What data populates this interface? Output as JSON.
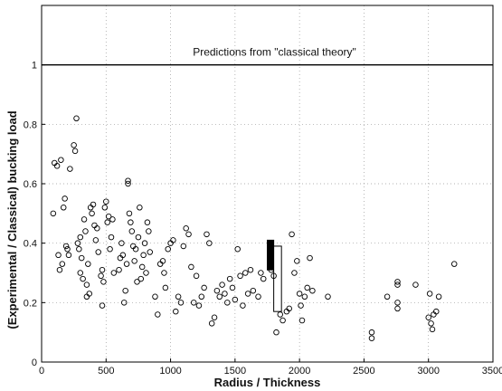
{
  "chart_data": {
    "type": "scatter",
    "title": "",
    "xlabel": "Radius / Thickness",
    "ylabel": "(Experimental / Classical)   bucking load",
    "xlim": [
      0,
      3500
    ],
    "ylim": [
      0,
      1.2
    ],
    "xticks": [
      0,
      500,
      1000,
      1500,
      2000,
      2500,
      3000,
      3500
    ],
    "yticks": [
      0,
      0.2,
      0.4,
      0.6,
      0.8,
      1
    ],
    "grid": "dotted",
    "annotation": "Predictions from \"classical theory\"",
    "reference_line_y": 1,
    "marker": "open-circle",
    "points": [
      [
        90,
        0.5
      ],
      [
        100,
        0.67
      ],
      [
        120,
        0.66
      ],
      [
        130,
        0.36
      ],
      [
        140,
        0.31
      ],
      [
        150,
        0.68
      ],
      [
        160,
        0.33
      ],
      [
        170,
        0.52
      ],
      [
        180,
        0.55
      ],
      [
        190,
        0.39
      ],
      [
        200,
        0.38
      ],
      [
        210,
        0.36
      ],
      [
        220,
        0.65
      ],
      [
        250,
        0.73
      ],
      [
        260,
        0.71
      ],
      [
        270,
        0.82
      ],
      [
        280,
        0.4
      ],
      [
        290,
        0.38
      ],
      [
        300,
        0.42
      ],
      [
        300,
        0.3
      ],
      [
        310,
        0.35
      ],
      [
        320,
        0.28
      ],
      [
        330,
        0.48
      ],
      [
        340,
        0.44
      ],
      [
        350,
        0.26
      ],
      [
        350,
        0.22
      ],
      [
        360,
        0.33
      ],
      [
        370,
        0.23
      ],
      [
        380,
        0.52
      ],
      [
        390,
        0.5
      ],
      [
        400,
        0.53
      ],
      [
        410,
        0.46
      ],
      [
        420,
        0.41
      ],
      [
        430,
        0.45
      ],
      [
        440,
        0.37
      ],
      [
        460,
        0.29
      ],
      [
        470,
        0.31
      ],
      [
        480,
        0.27
      ],
      [
        470,
        0.19
      ],
      [
        490,
        0.52
      ],
      [
        500,
        0.54
      ],
      [
        510,
        0.47
      ],
      [
        520,
        0.49
      ],
      [
        530,
        0.38
      ],
      [
        540,
        0.42
      ],
      [
        550,
        0.48
      ],
      [
        560,
        0.3
      ],
      [
        600,
        0.31
      ],
      [
        610,
        0.35
      ],
      [
        620,
        0.4
      ],
      [
        630,
        0.36
      ],
      [
        640,
        0.2
      ],
      [
        650,
        0.24
      ],
      [
        660,
        0.33
      ],
      [
        670,
        0.61
      ],
      [
        670,
        0.6
      ],
      [
        680,
        0.5
      ],
      [
        690,
        0.47
      ],
      [
        700,
        0.44
      ],
      [
        710,
        0.39
      ],
      [
        720,
        0.34
      ],
      [
        730,
        0.38
      ],
      [
        740,
        0.27
      ],
      [
        750,
        0.42
      ],
      [
        760,
        0.52
      ],
      [
        770,
        0.28
      ],
      [
        780,
        0.32
      ],
      [
        790,
        0.36
      ],
      [
        800,
        0.4
      ],
      [
        810,
        0.3
      ],
      [
        820,
        0.47
      ],
      [
        830,
        0.44
      ],
      [
        840,
        0.37
      ],
      [
        880,
        0.22
      ],
      [
        900,
        0.16
      ],
      [
        920,
        0.33
      ],
      [
        940,
        0.34
      ],
      [
        950,
        0.3
      ],
      [
        960,
        0.25
      ],
      [
        980,
        0.38
      ],
      [
        1000,
        0.4
      ],
      [
        1020,
        0.41
      ],
      [
        1040,
        0.17
      ],
      [
        1060,
        0.22
      ],
      [
        1080,
        0.2
      ],
      [
        1100,
        0.39
      ],
      [
        1120,
        0.45
      ],
      [
        1140,
        0.43
      ],
      [
        1160,
        0.32
      ],
      [
        1180,
        0.2
      ],
      [
        1200,
        0.29
      ],
      [
        1220,
        0.19
      ],
      [
        1240,
        0.22
      ],
      [
        1260,
        0.25
      ],
      [
        1280,
        0.43
      ],
      [
        1300,
        0.4
      ],
      [
        1320,
        0.13
      ],
      [
        1340,
        0.15
      ],
      [
        1360,
        0.24
      ],
      [
        1380,
        0.22
      ],
      [
        1400,
        0.26
      ],
      [
        1420,
        0.23
      ],
      [
        1440,
        0.2
      ],
      [
        1460,
        0.28
      ],
      [
        1480,
        0.25
      ],
      [
        1500,
        0.21
      ],
      [
        1520,
        0.38
      ],
      [
        1540,
        0.29
      ],
      [
        1560,
        0.19
      ],
      [
        1580,
        0.3
      ],
      [
        1600,
        0.23
      ],
      [
        1620,
        0.31
      ],
      [
        1640,
        0.24
      ],
      [
        1680,
        0.22
      ],
      [
        1700,
        0.3
      ],
      [
        1720,
        0.28
      ],
      [
        1780,
        0.31
      ],
      [
        1800,
        0.29
      ],
      [
        1820,
        0.1
      ],
      [
        1850,
        0.16
      ],
      [
        1870,
        0.14
      ],
      [
        1900,
        0.17
      ],
      [
        1920,
        0.18
      ],
      [
        1940,
        0.43
      ],
      [
        1960,
        0.3
      ],
      [
        1980,
        0.34
      ],
      [
        2000,
        0.23
      ],
      [
        2010,
        0.19
      ],
      [
        2020,
        0.14
      ],
      [
        2040,
        0.22
      ],
      [
        2060,
        0.25
      ],
      [
        2080,
        0.35
      ],
      [
        2100,
        0.24
      ],
      [
        2220,
        0.22
      ],
      [
        2560,
        0.1
      ],
      [
        2560,
        0.08
      ],
      [
        2680,
        0.22
      ],
      [
        2760,
        0.27
      ],
      [
        2760,
        0.26
      ],
      [
        2760,
        0.2
      ],
      [
        2760,
        0.18
      ],
      [
        2900,
        0.26
      ],
      [
        3000,
        0.15
      ],
      [
        3010,
        0.23
      ],
      [
        3020,
        0.13
      ],
      [
        3030,
        0.11
      ],
      [
        3040,
        0.16
      ],
      [
        3060,
        0.17
      ],
      [
        3080,
        0.22
      ],
      [
        3200,
        0.33
      ]
    ],
    "bars": [
      {
        "x_from": 1750,
        "x_to": 1800,
        "y_from": 0.31,
        "y_to": 0.41,
        "fill": "#000000"
      },
      {
        "x_from": 1800,
        "x_to": 1860,
        "y_from": 0.17,
        "y_to": 0.39,
        "fill": "#ffffff"
      }
    ]
  }
}
